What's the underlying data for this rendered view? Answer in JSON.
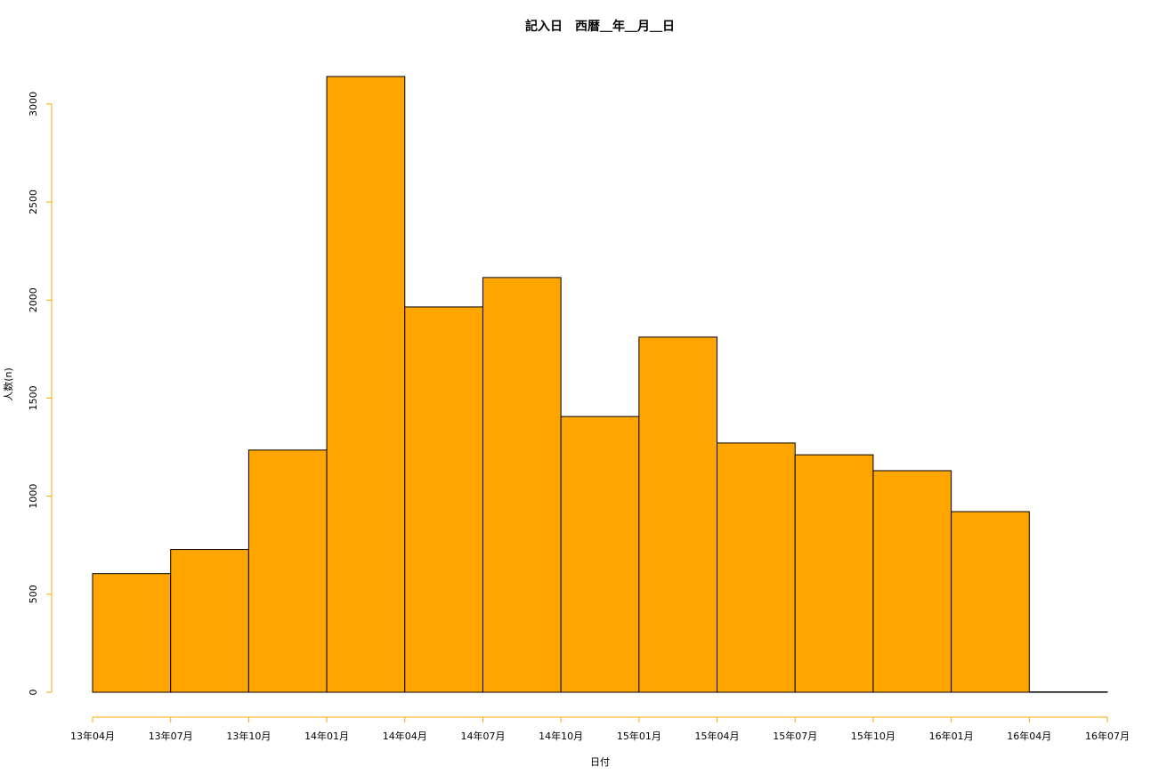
{
  "chart_data": {
    "type": "histogram",
    "title": "記入日　西暦＿年＿月＿日",
    "xlabel": "日付",
    "ylabel": "人数(n)",
    "bins": [
      "13年04月",
      "13年07月",
      "13年10月",
      "14年01月",
      "14年04月",
      "14年07月",
      "14年10月",
      "15年01月",
      "15年04月",
      "15年07月",
      "15年10月",
      "16年01月",
      "16年04月",
      "16年07月"
    ],
    "values": [
      605,
      728,
      1235,
      3140,
      1965,
      2115,
      1406,
      1811,
      1271,
      1211,
      1130,
      921,
      2
    ],
    "color": "#ffa500",
    "edge_color": "#000000",
    "axis_color": "#ffa500",
    "ylim": [
      0,
      3140
    ],
    "yticks": [
      0,
      500,
      1000,
      1500,
      2000,
      2500,
      3000
    ]
  }
}
